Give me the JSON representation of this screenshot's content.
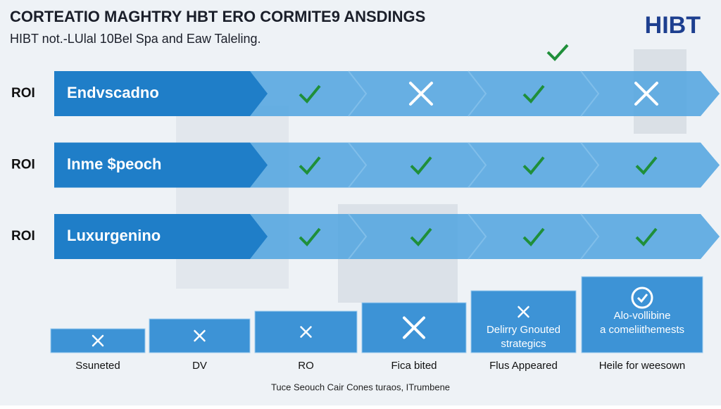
{
  "header": {
    "title": "CORTEATIO MAGHTRY HBT ERO CORMITE9 ANSDINGS",
    "subtitle": "HIBT not.-LUlal 10Bel Spa and Eaw Taleling.",
    "logo": "HIBT"
  },
  "rows": [
    {
      "label": "ROI",
      "name": "Endvscadno",
      "marks": [
        "check",
        "cross",
        "check",
        "cross"
      ]
    },
    {
      "label": "ROI",
      "name": "Inme $peoch",
      "marks": [
        "check",
        "check",
        "check",
        "check"
      ]
    },
    {
      "label": "ROI",
      "name": "Luxurgenino",
      "marks": [
        "check",
        "check",
        "check",
        "check"
      ]
    }
  ],
  "steps": [
    {
      "label": "Ssuneted",
      "icon": "cross",
      "lines": []
    },
    {
      "label": "DV",
      "icon": "cross",
      "lines": []
    },
    {
      "label": "RO",
      "icon": "cross",
      "lines": []
    },
    {
      "label": "Fica bited",
      "icon": "cross-large",
      "lines": []
    },
    {
      "label": "Flus Appeared",
      "icon": "cross",
      "lines": [
        "Delirry Gnouted",
        "strategics"
      ]
    },
    {
      "label": "Heile for weesown",
      "icon": "badge",
      "lines": [
        "Alo-vollibine",
        "a comeliithemests"
      ]
    }
  ],
  "footer": "Tuce Seouch Cair Cones turaos, ITrumbene"
}
